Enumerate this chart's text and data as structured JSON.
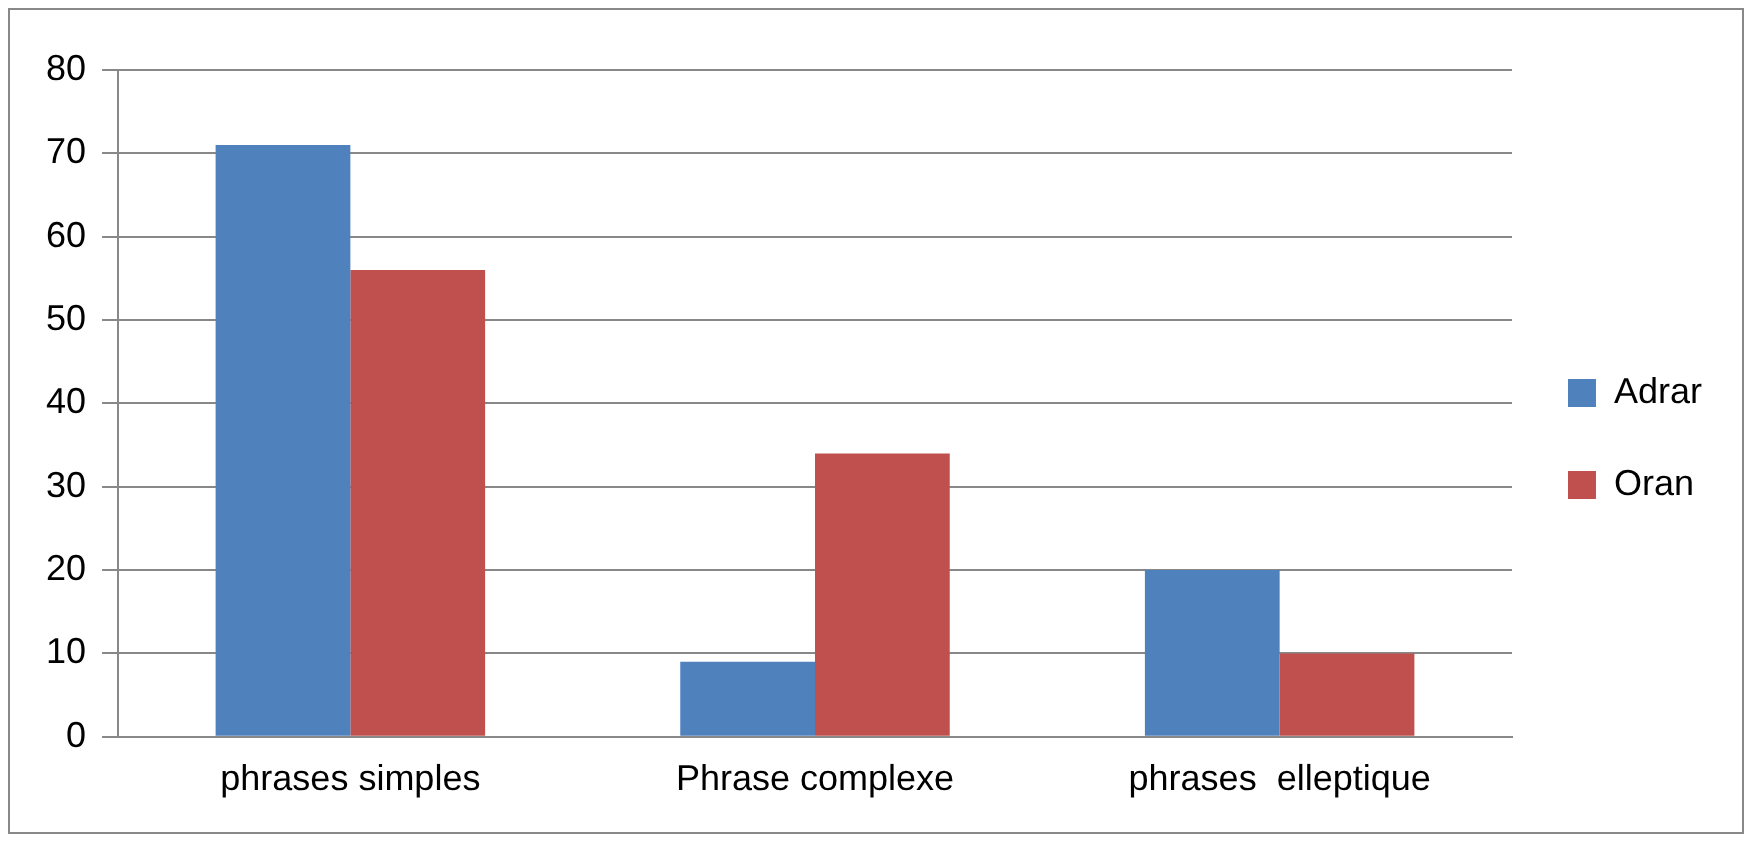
{
  "chart_data": {
    "type": "bar",
    "categories": [
      "phrases simples",
      "Phrase complexe",
      "phrases  elleptique"
    ],
    "series": [
      {
        "name": "Adrar",
        "color": "#4f81bd",
        "values": [
          71,
          9,
          20
        ]
      },
      {
        "name": "Oran",
        "color": "#c0504d",
        "values": [
          56,
          34,
          10
        ]
      }
    ],
    "ylim": [
      0,
      80
    ],
    "yticks": [
      0,
      10,
      20,
      30,
      40,
      50,
      60,
      70,
      80
    ],
    "grid": "y",
    "legend": "right"
  }
}
